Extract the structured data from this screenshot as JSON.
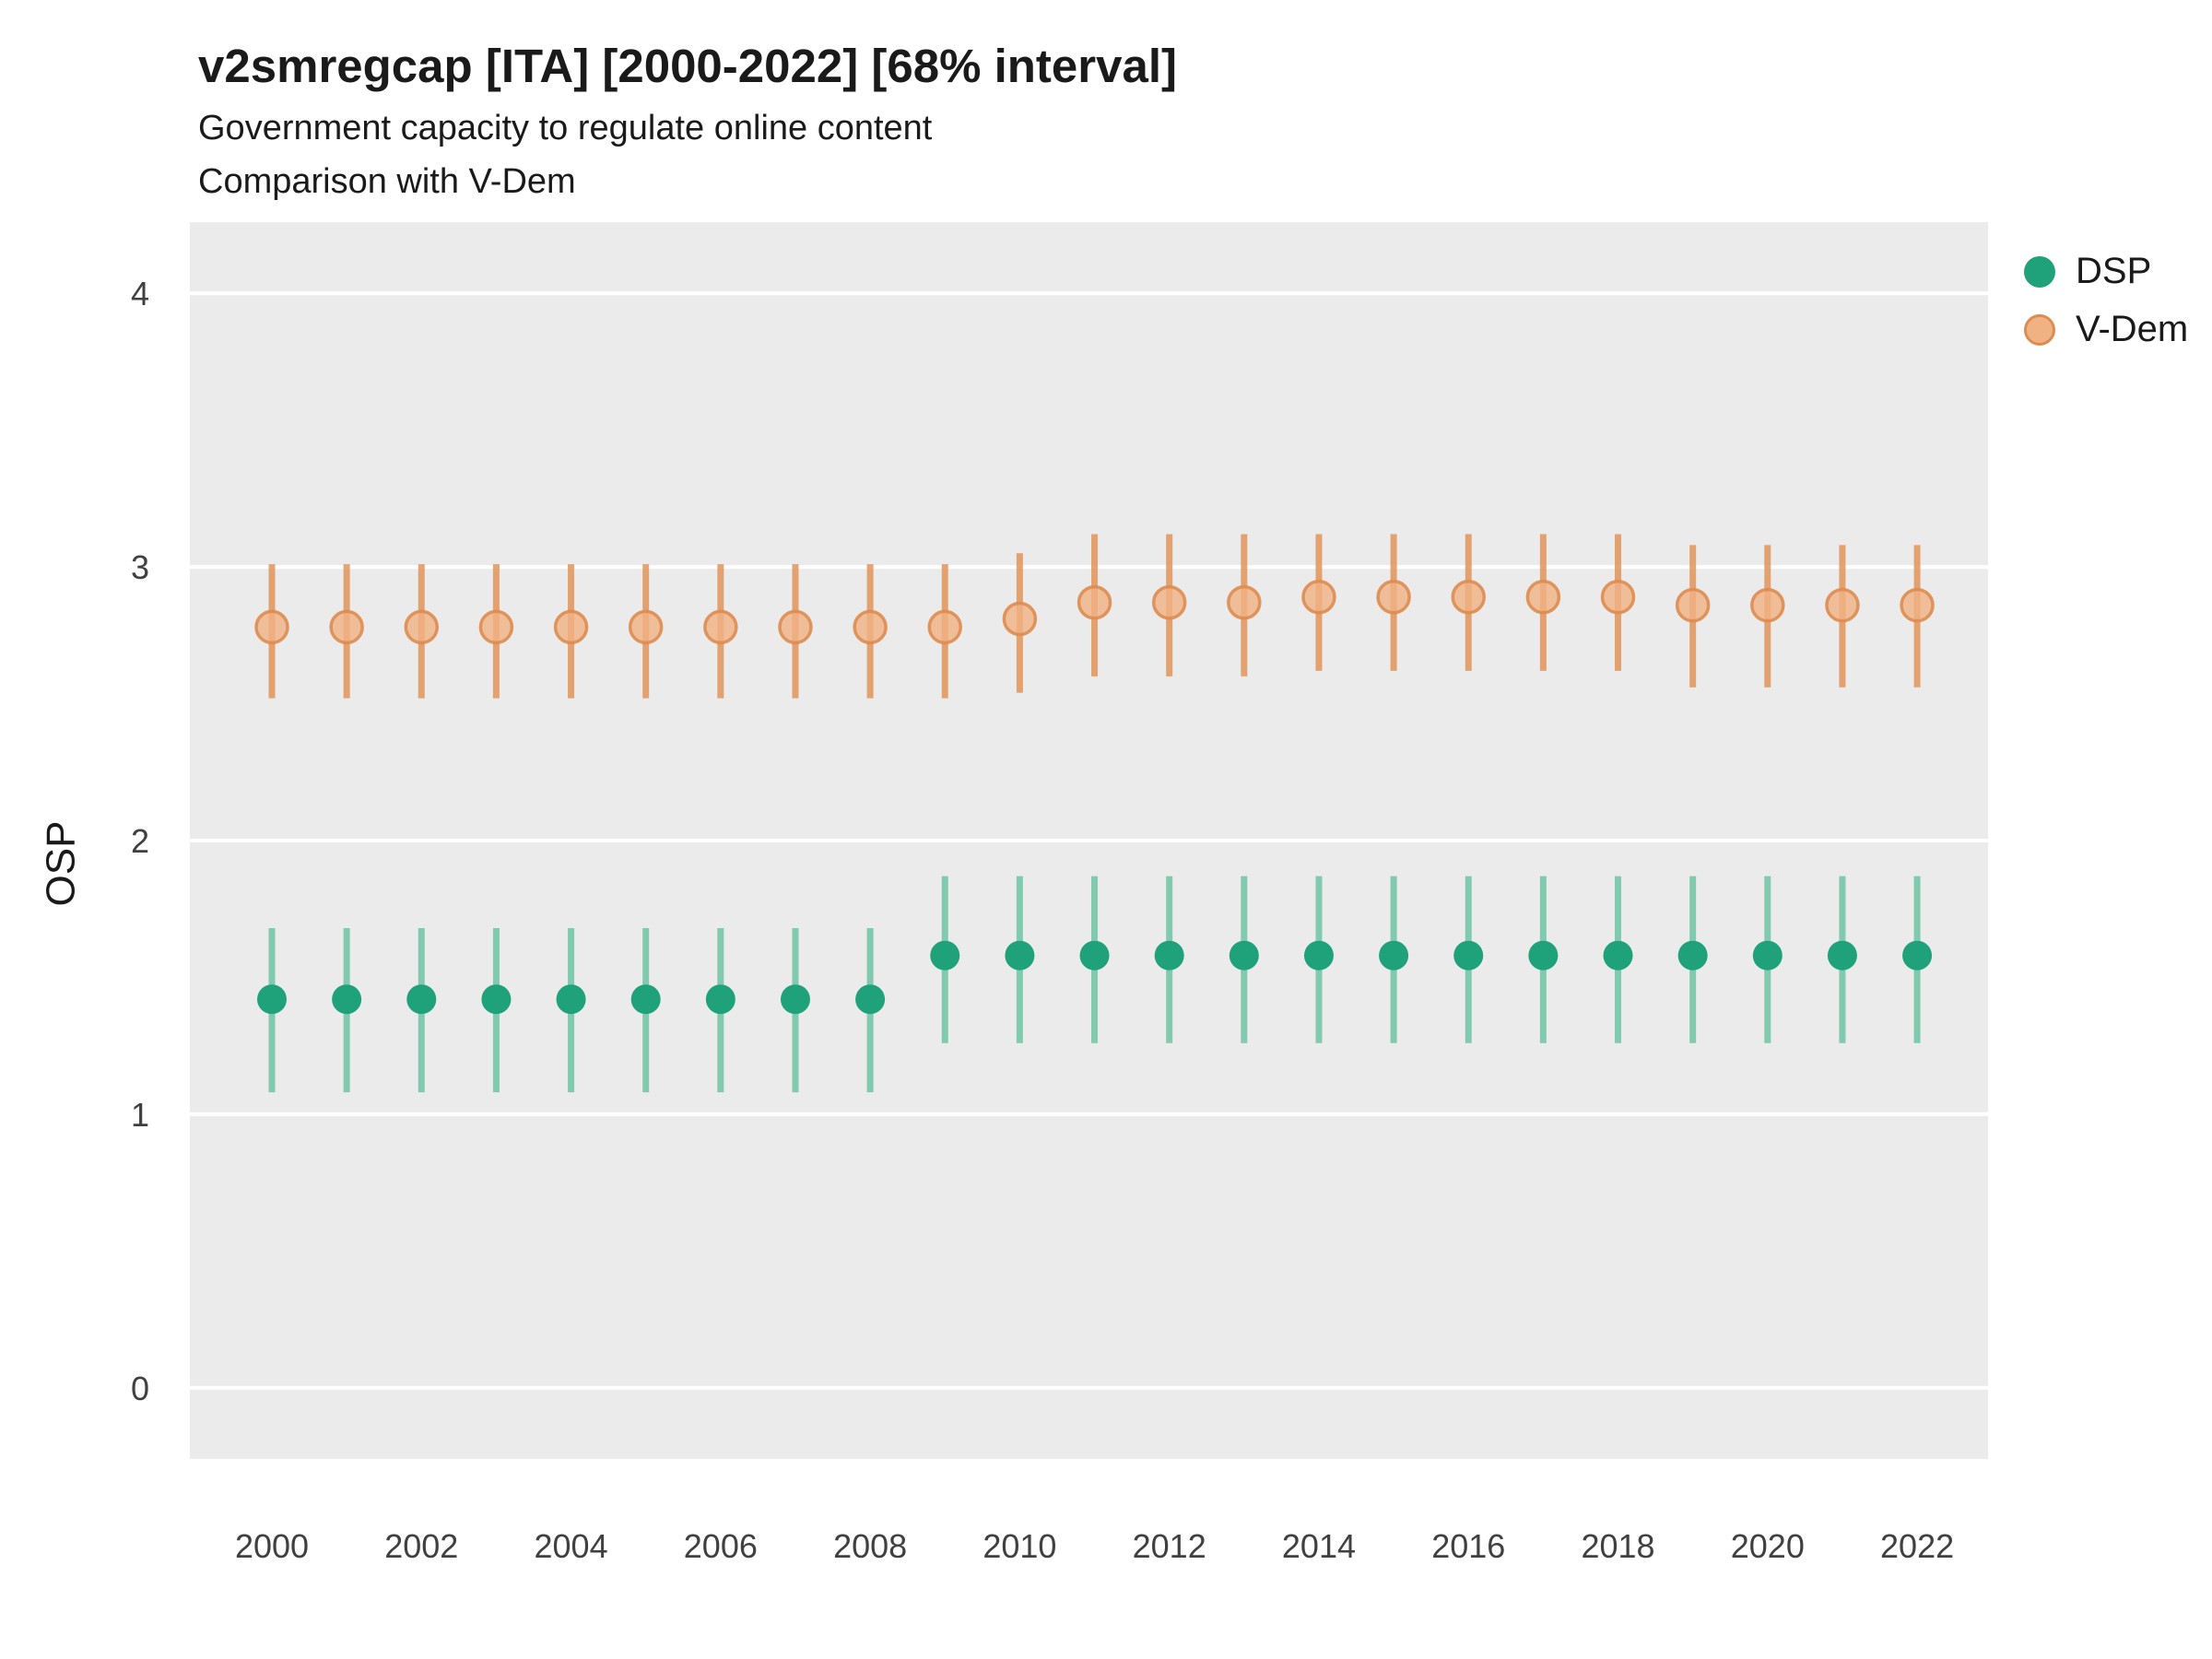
{
  "chart_data": {
    "type": "scatter",
    "title": "v2smregcap [ITA] [2000-2022] [68% interval]",
    "subtitle": "Government capacity to regulate online content",
    "subtitle2": "Comparison with V-Dem",
    "ylabel": "OSP",
    "xlabel": "",
    "interval_label": "68% interval",
    "country": "ITA",
    "ylim": [
      -0.26,
      4.26
    ],
    "yticks": [
      0,
      1,
      2,
      3,
      4
    ],
    "xticks": [
      2000,
      2002,
      2004,
      2006,
      2008,
      2010,
      2012,
      2014,
      2016,
      2018,
      2020,
      2022
    ],
    "years": [
      2000,
      2001,
      2002,
      2003,
      2004,
      2005,
      2006,
      2007,
      2008,
      2009,
      2010,
      2011,
      2012,
      2013,
      2014,
      2015,
      2016,
      2017,
      2018,
      2019,
      2020,
      2021,
      2022
    ],
    "grid": "horizontal-major",
    "legend_position": "right",
    "panel_bg": "#EBEBEB",
    "grid_color": "#FFFFFF",
    "series": [
      {
        "name": "DSP",
        "color": "#1FA179",
        "bar_color": "#6FC4A4",
        "est": [
          1.42,
          1.42,
          1.42,
          1.42,
          1.42,
          1.42,
          1.42,
          1.42,
          1.42,
          1.58,
          1.58,
          1.58,
          1.58,
          1.58,
          1.58,
          1.58,
          1.58,
          1.58,
          1.58,
          1.58,
          1.58,
          1.58,
          1.58
        ],
        "lo": [
          1.08,
          1.08,
          1.08,
          1.08,
          1.08,
          1.08,
          1.08,
          1.08,
          1.08,
          1.26,
          1.26,
          1.26,
          1.26,
          1.26,
          1.26,
          1.26,
          1.26,
          1.26,
          1.26,
          1.26,
          1.26,
          1.26,
          1.26
        ],
        "hi": [
          1.68,
          1.68,
          1.68,
          1.68,
          1.68,
          1.68,
          1.68,
          1.68,
          1.68,
          1.87,
          1.87,
          1.87,
          1.87,
          1.87,
          1.87,
          1.87,
          1.87,
          1.87,
          1.87,
          1.87,
          1.87,
          1.87,
          1.87
        ]
      },
      {
        "name": "V-Dem",
        "color": "#F0B183",
        "point_stroke": "#DD8C50",
        "bar_color": "#E2945B",
        "est": [
          2.78,
          2.78,
          2.78,
          2.78,
          2.78,
          2.78,
          2.78,
          2.78,
          2.78,
          2.78,
          2.81,
          2.87,
          2.87,
          2.87,
          2.89,
          2.89,
          2.89,
          2.89,
          2.89,
          2.86,
          2.86,
          2.86,
          2.86
        ],
        "lo": [
          2.52,
          2.52,
          2.52,
          2.52,
          2.52,
          2.52,
          2.52,
          2.52,
          2.52,
          2.52,
          2.54,
          2.6,
          2.6,
          2.6,
          2.62,
          2.62,
          2.62,
          2.62,
          2.62,
          2.56,
          2.56,
          2.56,
          2.56
        ],
        "hi": [
          3.01,
          3.01,
          3.01,
          3.01,
          3.01,
          3.01,
          3.01,
          3.01,
          3.01,
          3.01,
          3.05,
          3.12,
          3.12,
          3.12,
          3.12,
          3.12,
          3.12,
          3.12,
          3.12,
          3.08,
          3.08,
          3.08,
          3.08
        ]
      }
    ]
  }
}
